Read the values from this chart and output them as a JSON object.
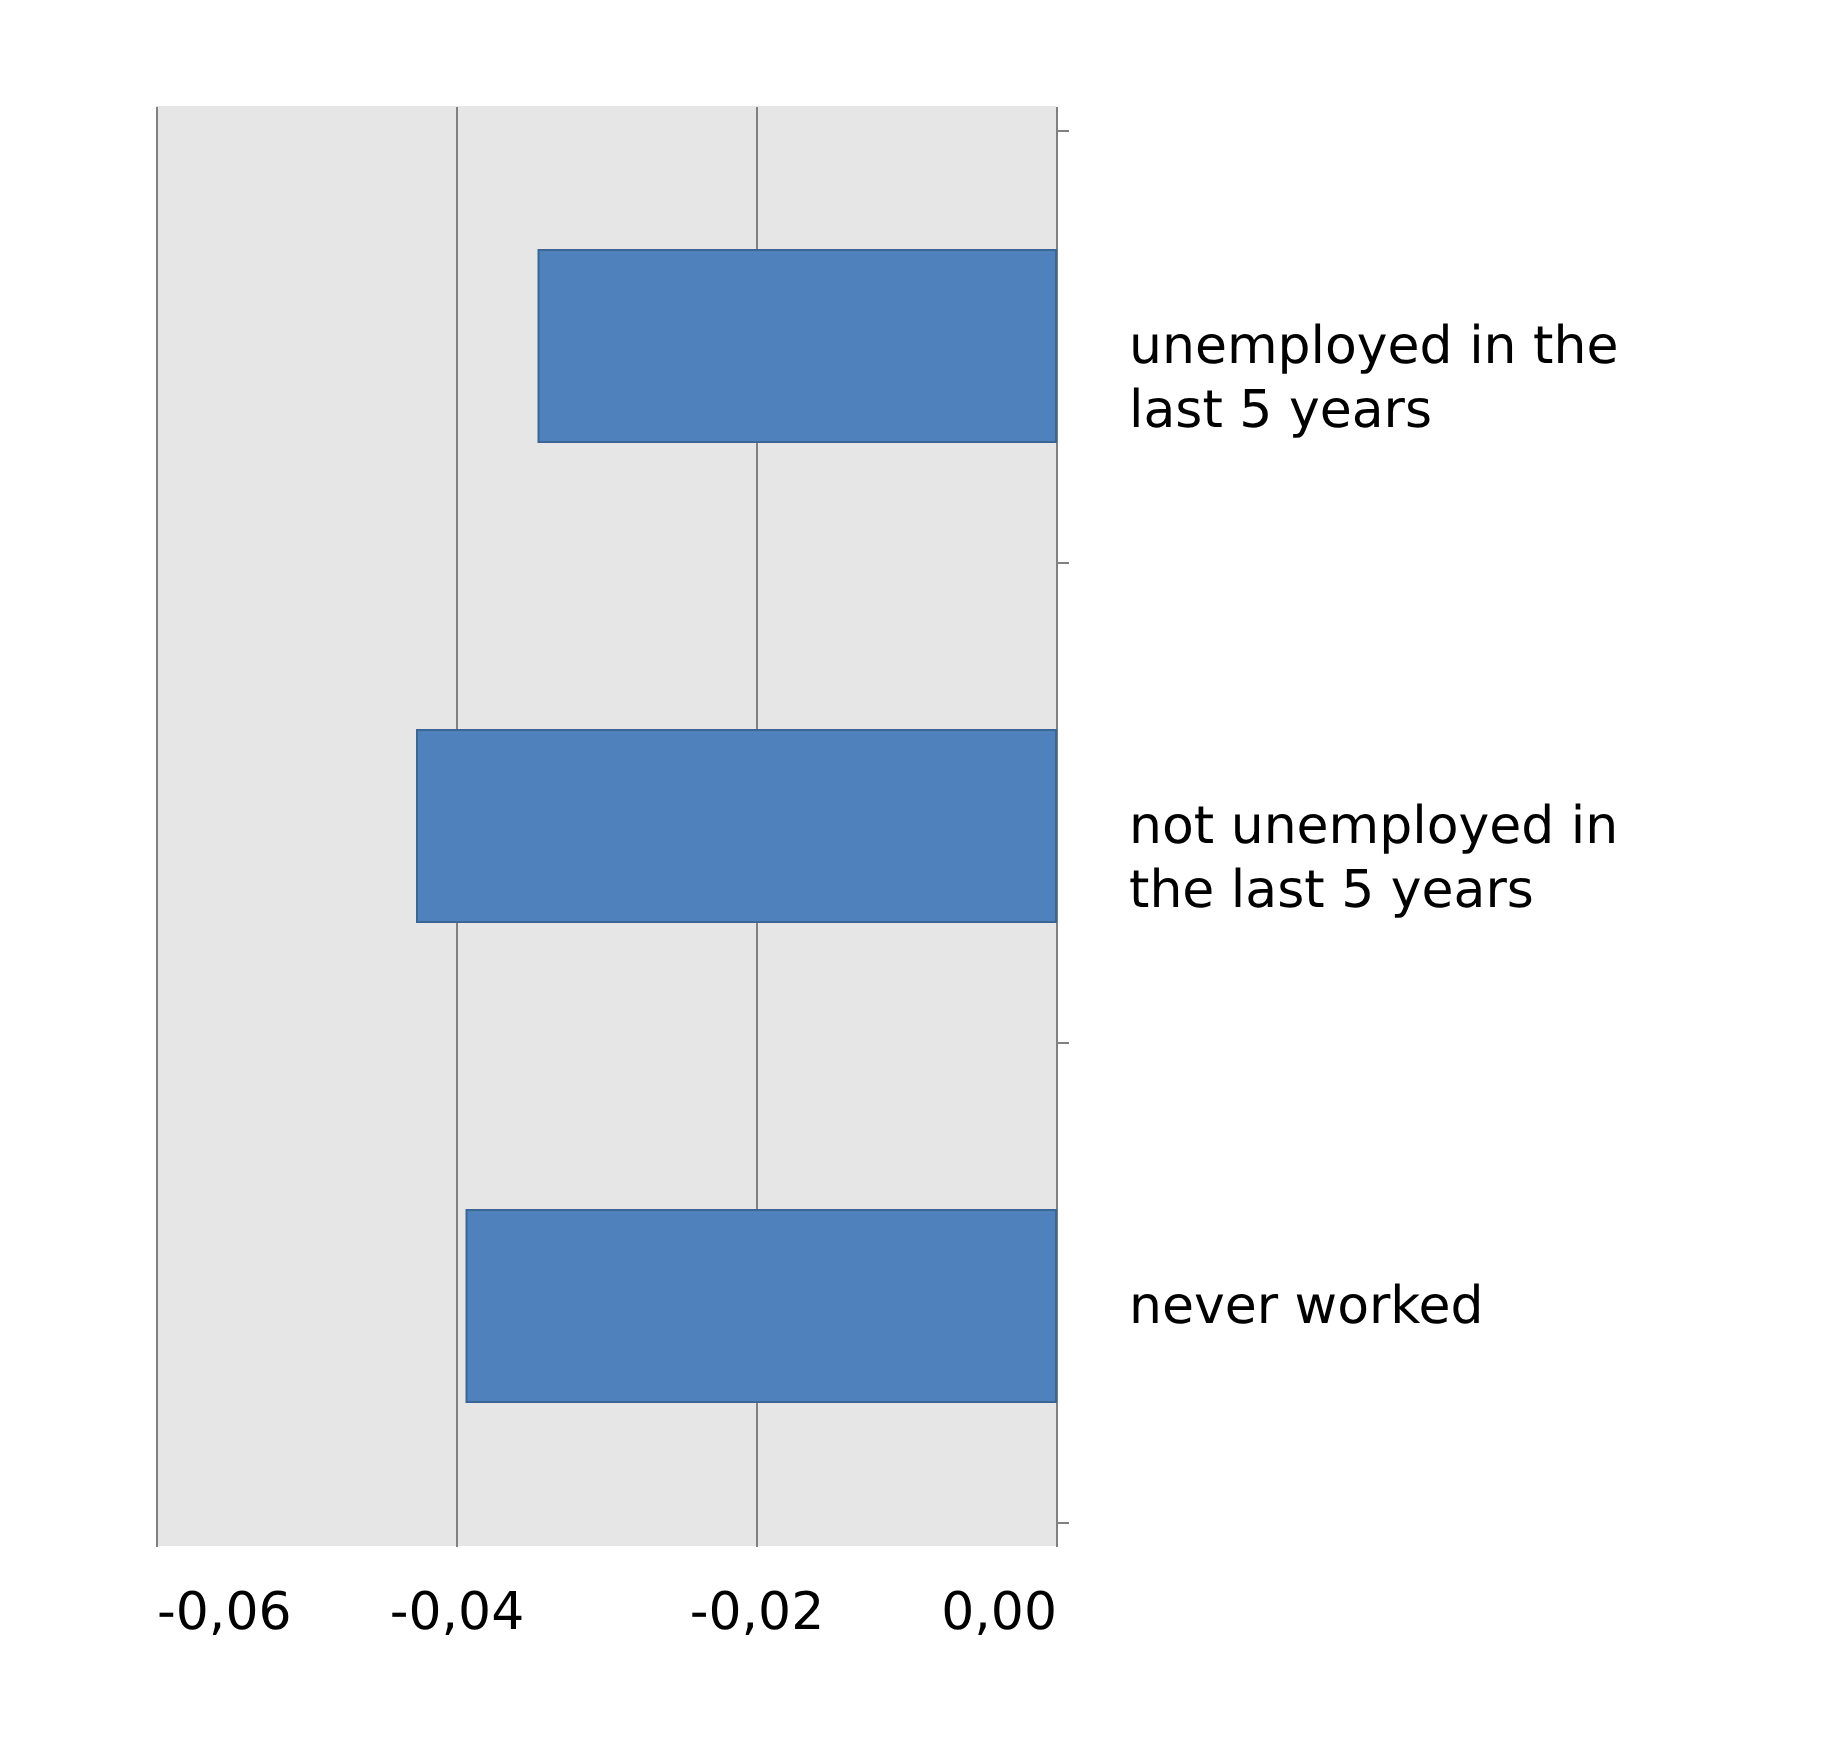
{
  "chart_data": {
    "type": "bar",
    "orientation": "horizontal",
    "categories": [
      "unemployed in the last 5 years",
      "not unemployed in the last 5 years",
      "never worked"
    ],
    "values": [
      -0.0345,
      -0.0426,
      -0.0393
    ],
    "color": "#4f81bd",
    "xlim": [
      -0.06,
      0.0
    ],
    "xticks": [
      {
        "value": -0.06,
        "label": "-0,06"
      },
      {
        "value": -0.04,
        "label": "-0,04"
      },
      {
        "value": -0.02,
        "label": "-0,02"
      },
      {
        "value": 0.0,
        "label": "0,00"
      }
    ],
    "grid": "x"
  }
}
